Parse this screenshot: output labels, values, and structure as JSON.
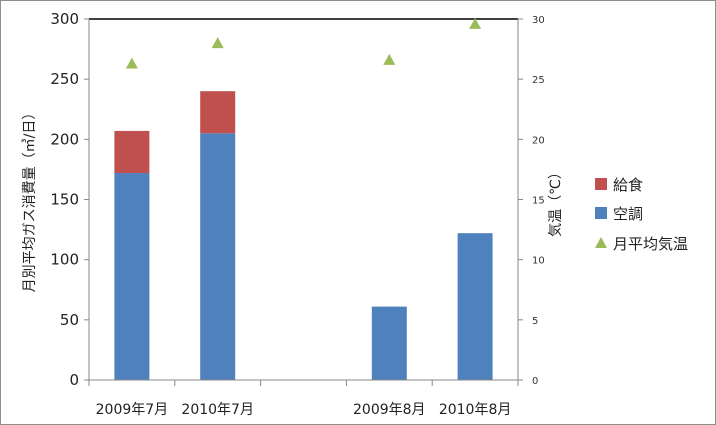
{
  "chart_data": {
    "type": "bar",
    "stacked": true,
    "categories": [
      "2009年7月",
      "2010年7月",
      "",
      "2009年8月",
      "2010年8月"
    ],
    "series": [
      {
        "name": "空調",
        "axis": "left",
        "color": "#4f81bd",
        "values": [
          172,
          205,
          null,
          61,
          122
        ]
      },
      {
        "name": "給食",
        "axis": "left",
        "color": "#c0504d",
        "values": [
          35,
          35,
          null,
          0,
          0
        ]
      },
      {
        "name": "月平均気温",
        "axis": "right",
        "type": "scatter",
        "marker": "triangle",
        "color": "#9bbb59",
        "values": [
          26.3,
          28.0,
          null,
          26.6,
          29.6
        ]
      }
    ],
    "ylabel": "月別平均ガス消費量（㎥/日）",
    "y2label": "気温（℃）",
    "ylim": [
      0,
      300
    ],
    "y2lim": [
      0,
      30
    ],
    "yticks": [
      "0",
      "50",
      "100",
      "150",
      "200",
      "250",
      "300"
    ],
    "y2ticks": [
      "0",
      "5",
      "10",
      "15",
      "20",
      "25",
      "30"
    ],
    "legend": {
      "placement": "right",
      "entries": [
        "給食",
        "空調",
        "月平均気温"
      ]
    },
    "grid": false
  }
}
